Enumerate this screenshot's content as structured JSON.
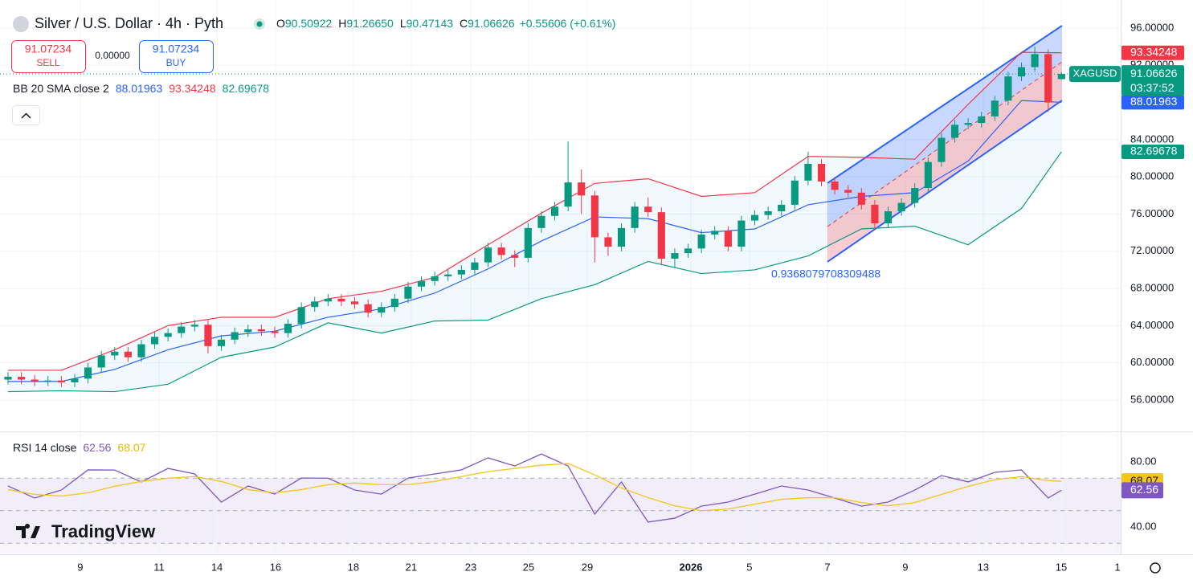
{
  "header": {
    "symbol": "Silver / U.S. Dollar · 4h · Pyth",
    "ohlc": [
      {
        "label": "O",
        "value": "90.50922"
      },
      {
        "label": "H",
        "value": "91.26650"
      },
      {
        "label": "L",
        "value": "90.47143"
      },
      {
        "label": "C",
        "value": "91.06626"
      }
    ],
    "change": "+0.55606 (+0.61%)",
    "sell_price": "91.07234",
    "sell_label": "SELL",
    "spread": "0.00000",
    "buy_price": "91.07234",
    "buy_label": "BUY",
    "bb_legend": {
      "name": "BB 20 SMA close 2",
      "values": [
        {
          "text": "88.01963",
          "color": "#2962ff"
        },
        {
          "text": "93.34248",
          "color": "#f23645"
        },
        {
          "text": "82.69678",
          "color": "#089981"
        }
      ]
    },
    "rsi_legend": {
      "name": "RSI 14 close",
      "values": [
        {
          "text": "62.56",
          "color": "#7e57c2"
        },
        {
          "text": "68.07",
          "color": "#e8b900"
        }
      ]
    },
    "logo": "TradingView"
  },
  "chart_data": [
    {
      "type": "candlestick",
      "up_color": "#089981",
      "down_color": "#f23645",
      "grid": true,
      "xlim": [
        -0.6,
        83.44
      ],
      "ylim": [
        52.63,
        99.02
      ],
      "xticks": [
        {
          "value": 5.42,
          "label": "9"
        },
        {
          "value": 11.33,
          "label": "11"
        },
        {
          "value": 15.67,
          "label": "14"
        },
        {
          "value": 20.06,
          "label": "16"
        },
        {
          "value": 25.9,
          "label": "18"
        },
        {
          "value": 30.24,
          "label": "21"
        },
        {
          "value": 34.7,
          "label": "23"
        },
        {
          "value": 39.04,
          "label": "25"
        },
        {
          "value": 43.44,
          "label": "29"
        },
        {
          "value": 51.21,
          "label": "2026"
        },
        {
          "value": 55.6,
          "label": "5"
        },
        {
          "value": 61.45,
          "label": "7"
        },
        {
          "value": 67.29,
          "label": "9"
        },
        {
          "value": 73.13,
          "label": "13"
        },
        {
          "value": 78.98,
          "label": "15"
        },
        {
          "value": 83.2,
          "label": "1"
        }
      ],
      "yticks": [
        {
          "value": 56,
          "label": "56.00000"
        },
        {
          "value": 60,
          "label": "60.00000"
        },
        {
          "value": 64,
          "label": "64.00000"
        },
        {
          "value": 68,
          "label": "68.00000"
        },
        {
          "value": 72,
          "label": "72.00000"
        },
        {
          "value": 76,
          "label": "76.00000"
        },
        {
          "value": 80,
          "label": "80.00000"
        },
        {
          "value": 84,
          "label": "84.00000"
        },
        {
          "value": 92,
          "label": "92.00000"
        },
        {
          "value": 96,
          "label": "96.00000"
        }
      ],
      "open": [
        58.2,
        58.5,
        58.2,
        58.0,
        58.1,
        57.9,
        58.3,
        59.5,
        60.8,
        61.2,
        60.6,
        62.0,
        62.8,
        63.2,
        63.9,
        64.1,
        61.8,
        62.5,
        63.3,
        63.6,
        63.4,
        63.2,
        64.2,
        66.0,
        66.6,
        66.9,
        66.6,
        66.3,
        65.4,
        66.0,
        66.9,
        68.2,
        68.8,
        69.3,
        69.5,
        70.0,
        70.8,
        72.4,
        71.6,
        71.3,
        74.5,
        75.8,
        76.8,
        79.4,
        78.0,
        73.5,
        72.5,
        74.5,
        76.8,
        76.2,
        71.2,
        71.8,
        72.3,
        73.8,
        74.2,
        72.5,
        75.3,
        75.9,
        76.3,
        77.0,
        79.6,
        81.4,
        79.5,
        78.6,
        78.3,
        77.0,
        75.0,
        76.3,
        77.2,
        78.8,
        81.6,
        84.2,
        85.6,
        85.8,
        86.5,
        88.2,
        90.8,
        91.8,
        93.2,
        90.50922
      ],
      "high": [
        59.0,
        59.0,
        58.7,
        58.6,
        58.6,
        58.8,
        60.0,
        61.3,
        61.7,
        61.7,
        62.5,
        63.3,
        63.7,
        64.4,
        64.6,
        64.6,
        63.0,
        63.8,
        64.1,
        64.1,
        63.9,
        64.7,
        66.5,
        67.1,
        67.4,
        67.4,
        67.1,
        66.8,
        66.5,
        67.4,
        68.7,
        69.3,
        69.8,
        70.0,
        70.5,
        71.3,
        72.9,
        72.9,
        72.1,
        75.0,
        76.3,
        77.3,
        83.8,
        80.8,
        78.5,
        74.0,
        75.0,
        77.3,
        77.8,
        76.7,
        72.3,
        72.8,
        74.3,
        74.7,
        74.7,
        75.8,
        76.4,
        76.8,
        77.5,
        80.1,
        82.7,
        81.9,
        80.0,
        79.1,
        78.8,
        77.5,
        76.8,
        77.7,
        79.3,
        82.1,
        84.7,
        86.1,
        86.3,
        87.0,
        88.7,
        91.3,
        92.3,
        94.0,
        93.7,
        91.2665
      ],
      "low": [
        57.7,
        57.7,
        57.5,
        57.5,
        57.4,
        57.4,
        57.8,
        59.0,
        60.3,
        60.1,
        60.1,
        61.5,
        62.3,
        62.7,
        63.4,
        61.0,
        61.3,
        62.0,
        62.8,
        62.9,
        62.7,
        62.7,
        63.7,
        65.5,
        66.1,
        66.1,
        65.8,
        64.9,
        64.9,
        65.5,
        66.4,
        67.7,
        68.3,
        68.8,
        69.0,
        69.5,
        70.3,
        71.1,
        70.3,
        70.8,
        74.0,
        75.3,
        76.3,
        76.0,
        70.8,
        71.5,
        72.0,
        74.0,
        75.7,
        70.5,
        70.2,
        71.3,
        71.8,
        73.3,
        72.0,
        72.0,
        74.8,
        75.4,
        75.8,
        76.5,
        79.1,
        79.0,
        78.1,
        77.8,
        76.5,
        74.3,
        74.5,
        75.8,
        76.7,
        78.3,
        81.1,
        83.7,
        85.1,
        85.3,
        86.0,
        87.7,
        90.3,
        91.3,
        87.0,
        90.47143
      ],
      "close": [
        58.5,
        58.2,
        58.0,
        58.1,
        57.9,
        58.3,
        59.5,
        60.8,
        61.2,
        60.6,
        62.0,
        62.8,
        63.2,
        63.9,
        64.1,
        61.8,
        62.5,
        63.3,
        63.6,
        63.4,
        63.2,
        64.2,
        66.0,
        66.6,
        66.9,
        66.6,
        66.3,
        65.4,
        66.0,
        66.9,
        68.2,
        68.8,
        69.3,
        69.5,
        70.0,
        70.8,
        72.4,
        71.6,
        71.3,
        74.5,
        75.8,
        76.8,
        79.4,
        78.0,
        73.5,
        72.5,
        74.5,
        76.8,
        76.2,
        71.2,
        71.8,
        72.3,
        73.8,
        74.2,
        72.5,
        75.3,
        75.9,
        76.3,
        77.0,
        79.6,
        81.4,
        79.5,
        78.6,
        78.3,
        77.0,
        75.0,
        76.3,
        77.2,
        78.8,
        81.6,
        84.2,
        85.6,
        85.8,
        86.5,
        88.2,
        90.8,
        91.8,
        93.2,
        88.0,
        91.06626
      ],
      "bands": {
        "x": [
          0,
          4,
          8,
          12,
          16,
          20,
          24,
          28,
          32,
          36,
          40,
          44,
          48,
          52,
          56,
          60,
          64,
          68,
          72,
          76,
          79
        ],
        "series": [
          {
            "name": "upper",
            "color": "#f23645",
            "values": [
              59.2,
              59.2,
              61.4,
              64.0,
              64.9,
              64.9,
              66.9,
              67.7,
              69.2,
              72.7,
              76.1,
              79.3,
              79.8,
              77.9,
              78.3,
              82.2,
              82.1,
              81.9,
              87.8,
              93.4,
              93.34248
            ]
          },
          {
            "name": "middle",
            "color": "#2962ff",
            "values": [
              58.0,
              58.0,
              59.3,
              61.4,
              62.9,
              63.4,
              64.9,
              65.8,
              67.5,
              70.1,
              73.1,
              75.7,
              75.5,
              74.0,
              74.4,
              77.0,
              77.9,
              78.3,
              81.7,
              88.2,
              88.01963
            ]
          },
          {
            "name": "lower",
            "color": "#089981",
            "values": [
              56.9,
              57.0,
              56.9,
              57.7,
              60.6,
              61.7,
              64.3,
              63.2,
              64.5,
              64.6,
              66.9,
              68.4,
              70.9,
              69.6,
              70.0,
              71.5,
              74.4,
              74.7,
              72.7,
              76.6,
              82.69678
            ]
          }
        ]
      },
      "channel": {
        "x": [
          61.45,
          79.04
        ],
        "upper": [
          79.33,
          96.26
        ],
        "middle": [
          74.66,
          92.37
        ],
        "lower": [
          70.86,
          88.22
        ],
        "label": "0.9368079708309488"
      },
      "last_price": {
        "value": 91.06626,
        "label": "91.06626",
        "countdown": "03:37:52",
        "symbol": "XAGUSD",
        "color": "#089981"
      },
      "price_tags": [
        {
          "value": 93.34248,
          "label": "93.34248",
          "color": "#f23645"
        },
        {
          "value": 88.01963,
          "label": "88.01963",
          "color": "#2962ff"
        },
        {
          "value": 82.69678,
          "label": "82.69678",
          "color": "#089981"
        }
      ]
    },
    {
      "type": "line",
      "ylim": [
        23.2,
        97.3
      ],
      "yticks": [
        {
          "value": 40,
          "label": "40.00"
        },
        {
          "value": 80,
          "label": "80.00"
        }
      ],
      "levels": [
        30,
        50,
        70
      ],
      "x": [
        0,
        2,
        4,
        6,
        8,
        10,
        12,
        14,
        16,
        18,
        20,
        22,
        24,
        26,
        28,
        30,
        32,
        34,
        36,
        38,
        40,
        42,
        44,
        46,
        48,
        50,
        52,
        54,
        56,
        58,
        60,
        62,
        64,
        66,
        68,
        70,
        72,
        74,
        76,
        78,
        79
      ],
      "series": [
        {
          "name": "RSI",
          "color": "#7e57c2",
          "values": [
            65.2,
            57.8,
            62.7,
            75.1,
            75.0,
            67.7,
            76.0,
            72.6,
            55.3,
            65.2,
            60.2,
            70.1,
            70.0,
            62.7,
            60.2,
            70.1,
            72.6,
            75.1,
            82.5,
            77.5,
            84.9,
            77.5,
            47.9,
            67.7,
            43.0,
            45.4,
            52.8,
            55.3,
            60.2,
            65.2,
            62.7,
            57.8,
            52.8,
            55.3,
            62.7,
            71.6,
            67.7,
            73.6,
            75.1,
            57.8,
            62.56
          ]
        },
        {
          "name": "RSI MA",
          "color": "#f5c518",
          "values": [
            63,
            60,
            59,
            61,
            65,
            68,
            70,
            71,
            68,
            63,
            61,
            63,
            66,
            67,
            66,
            66,
            68,
            71,
            74,
            76,
            78,
            79,
            72,
            64,
            58,
            53,
            50,
            51,
            54,
            57,
            58,
            58,
            55,
            53,
            55,
            60,
            65,
            69,
            71,
            68.5,
            68.07
          ]
        }
      ],
      "tags": [
        {
          "value": 68.07,
          "label": "68.07",
          "color": "#f5c518"
        },
        {
          "value": 62.56,
          "label": "62.56",
          "color": "#7e57c2"
        }
      ]
    }
  ]
}
